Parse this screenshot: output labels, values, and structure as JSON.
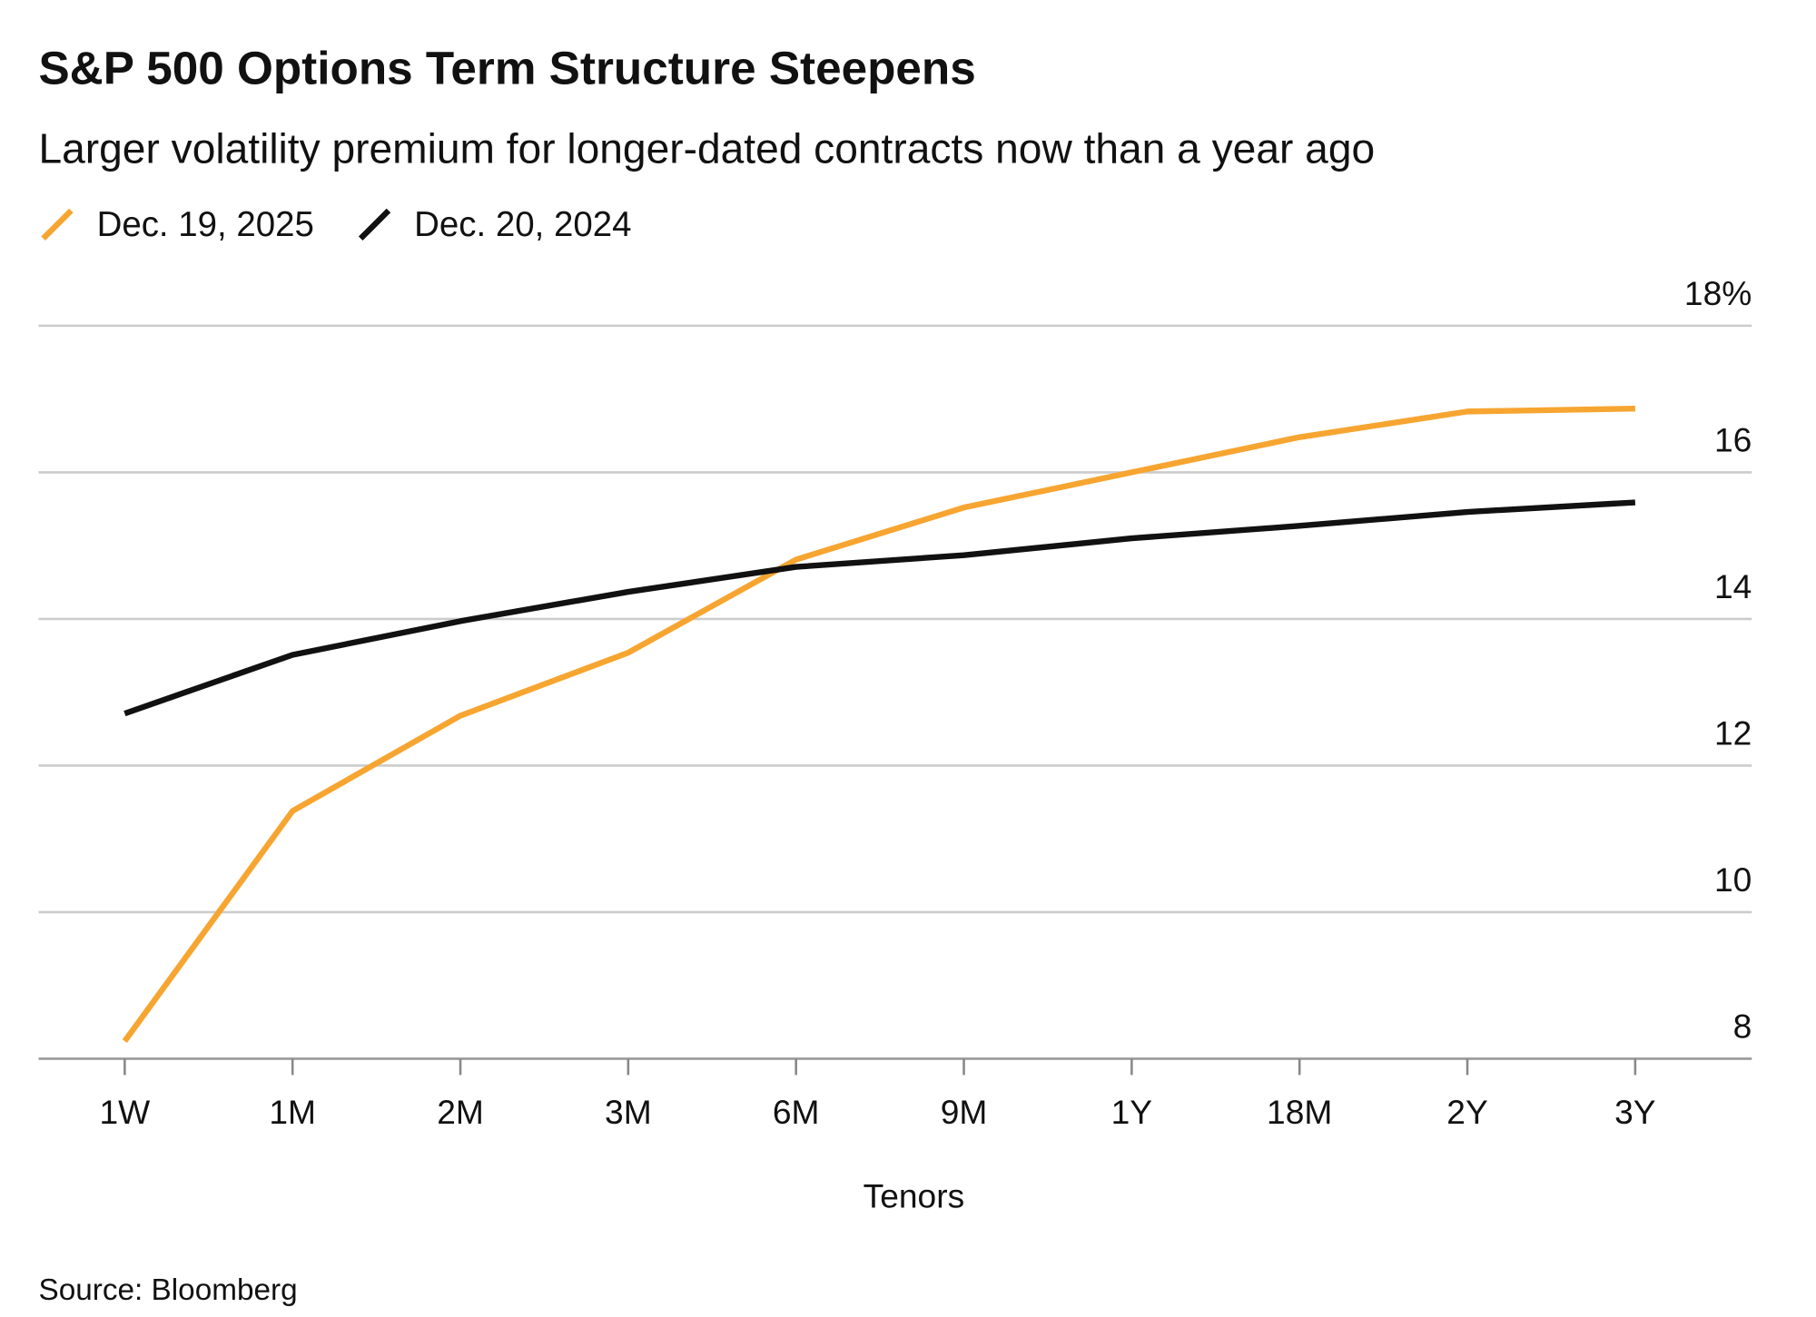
{
  "chart_data": {
    "type": "line",
    "title": "S&P 500 Options Term Structure Steepens",
    "subtitle": "Larger volatility premium for longer-dated contracts now than a year ago",
    "x_label": "Tenors",
    "source": "Source: Bloomberg",
    "categories": [
      "1W",
      "1M",
      "2M",
      "3M",
      "6M",
      "9M",
      "1Y",
      "18M",
      "2Y",
      "3Y"
    ],
    "series": [
      {
        "name": "Dec. 19, 2025",
        "color": "#f7a531",
        "values": [
          8.24,
          11.38,
          12.68,
          13.54,
          14.81,
          15.52,
          16.0,
          16.48,
          16.83,
          16.87
        ]
      },
      {
        "name": "Dec. 20, 2024",
        "color": "#111111",
        "values": [
          12.71,
          13.51,
          13.97,
          14.37,
          14.71,
          14.87,
          15.1,
          15.27,
          15.46,
          15.59
        ]
      }
    ],
    "ylim": [
      8,
      18
    ],
    "yticks": [
      8,
      10,
      12,
      14,
      16,
      {
        "value": 18,
        "label": "18%"
      }
    ],
    "grid": true,
    "legend": "top-left"
  }
}
